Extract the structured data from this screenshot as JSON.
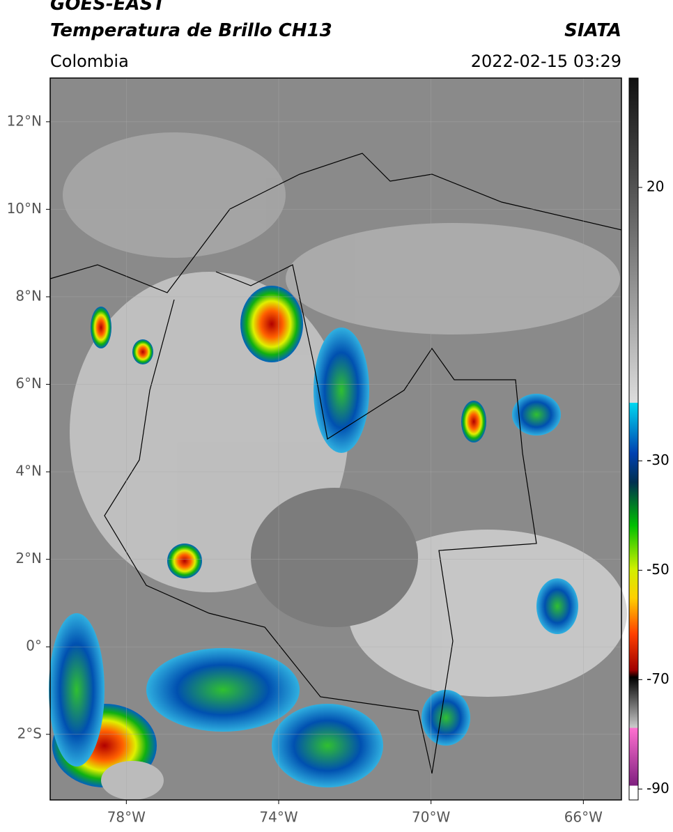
{
  "header": {
    "title": "GOES-EAST",
    "subtitle": "Temperatura de Brillo CH13",
    "source": "SIATA",
    "region": "Colombia",
    "datetime": "2022-02-15 03:29"
  },
  "map": {
    "xlim": [
      -80,
      -65
    ],
    "ylim": [
      -3.5,
      13
    ],
    "xticks": [
      {
        "value": -78,
        "label": "78°W"
      },
      {
        "value": -74,
        "label": "74°W"
      },
      {
        "value": -70,
        "label": "70°W"
      },
      {
        "value": -66,
        "label": "66°W"
      }
    ],
    "yticks": [
      {
        "value": 12,
        "label": "12°N"
      },
      {
        "value": 10,
        "label": "10°N"
      },
      {
        "value": 8,
        "label": "8°N"
      },
      {
        "value": 6,
        "label": "6°N"
      },
      {
        "value": 4,
        "label": "4°N"
      },
      {
        "value": 2,
        "label": "2°N"
      },
      {
        "value": 0,
        "label": "0°"
      },
      {
        "value": -2,
        "label": "2°S"
      }
    ],
    "grid": true
  },
  "colorbar": {
    "lim": [
      40,
      -92
    ],
    "ticks": [
      20,
      -30,
      -50,
      -70,
      -90
    ]
  }
}
